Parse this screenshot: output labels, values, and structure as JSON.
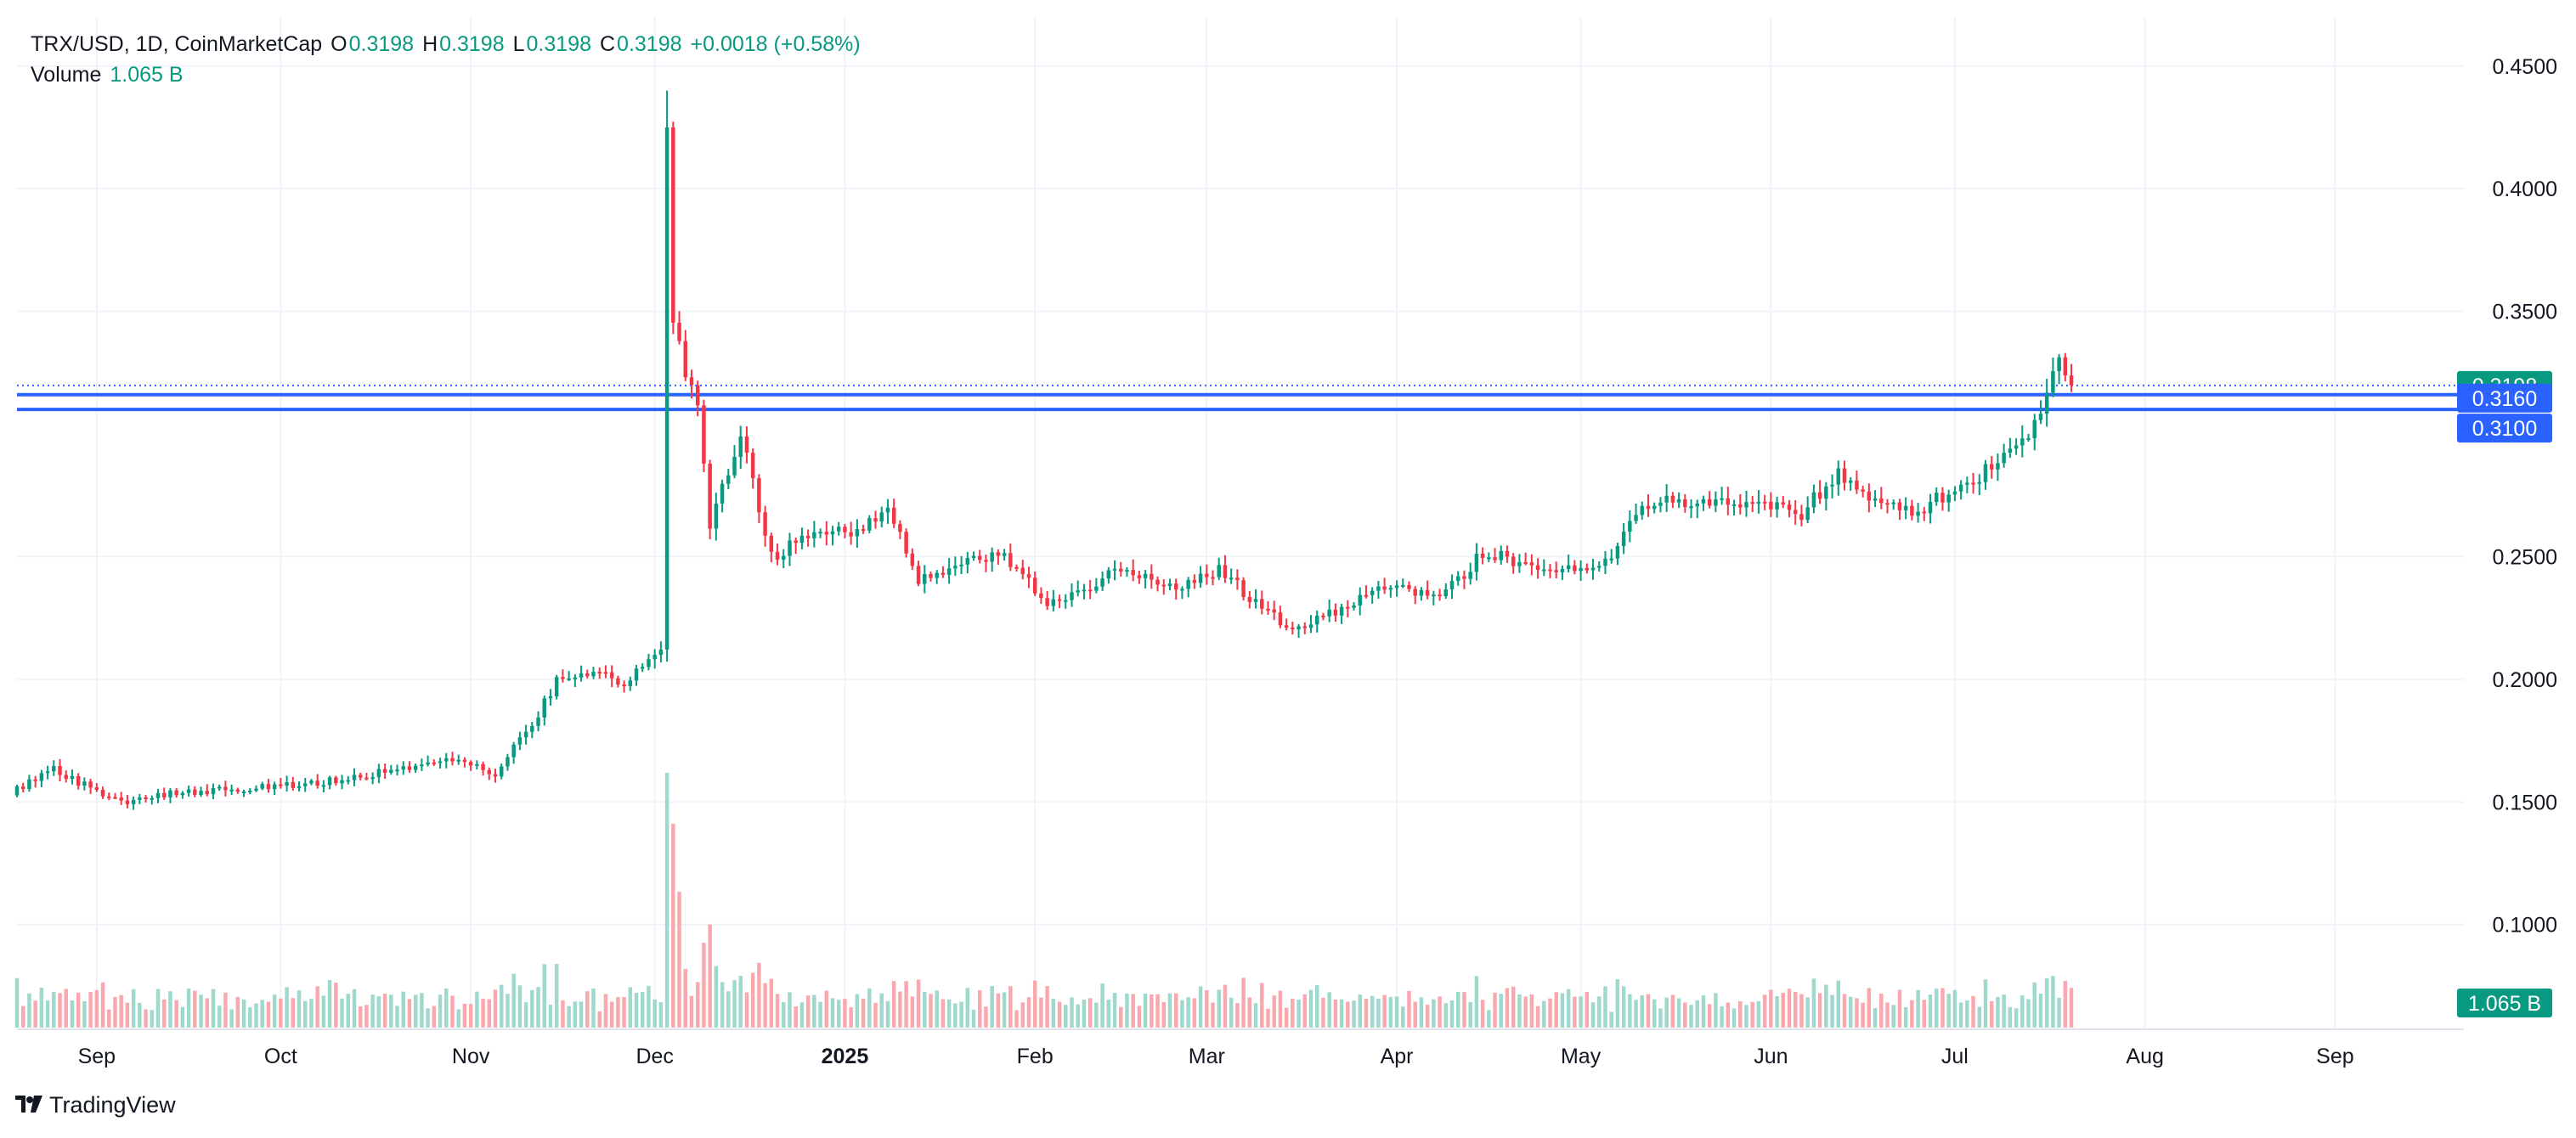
{
  "legend": {
    "symbol": "TRX/USD, 1D, CoinMarketCap",
    "o_label": "O",
    "o_value": "0.3198",
    "h_label": "H",
    "h_value": "0.3198",
    "l_label": "L",
    "l_value": "0.3198",
    "c_label": "C",
    "c_value": "0.3198",
    "change": "+0.0018 (+0.58%)",
    "volume_label": "Volume",
    "volume_value": "1.065 B"
  },
  "brand": {
    "name": "TradingView",
    "logo_icon": "tradingview-logo-icon"
  },
  "colors": {
    "up": "#089981",
    "down": "#F23645",
    "up_volume": "#9fd8cc",
    "down_volume": "#f9a8ae",
    "grid": "#f0f3fa",
    "axis_text": "#131722",
    "price_line": "#2962FF",
    "current_price_bg": "#089981"
  },
  "chart_data": {
    "type": "candlestick",
    "symbol": "TRX/USD",
    "interval": "1D",
    "source": "CoinMarketCap",
    "x_axis": {
      "ticks": [
        "Sep",
        "Oct",
        "Nov",
        "Dec",
        "2025",
        "Feb",
        "Mar",
        "Apr",
        "May",
        "Jun",
        "Jul",
        "Aug",
        "Sep"
      ],
      "tick_dates": [
        "2024-09-01",
        "2024-10-01",
        "2024-11-01",
        "2024-12-01",
        "2025-01-01",
        "2025-02-01",
        "2025-03-01",
        "2025-04-01",
        "2025-05-01",
        "2025-06-01",
        "2025-07-01",
        "2025-08-01",
        "2025-09-01"
      ],
      "range": [
        "2024-08-19",
        "2025-09-22"
      ]
    },
    "y_axis": {
      "ticks": [
        "0.4500",
        "0.4000",
        "0.3500",
        "0.2500",
        "0.2000",
        "0.1500",
        "0.1000"
      ],
      "range": [
        0.058,
        0.47
      ],
      "position": "right",
      "grid": true
    },
    "close_anchors": [
      [
        "2024-08-19",
        0.155
      ],
      [
        "2024-08-25",
        0.163
      ],
      [
        "2024-09-05",
        0.15
      ],
      [
        "2024-09-15",
        0.154
      ],
      [
        "2024-10-01",
        0.156
      ],
      [
        "2024-10-15",
        0.161
      ],
      [
        "2024-10-30",
        0.167
      ],
      [
        "2024-11-05",
        0.162
      ],
      [
        "2024-11-10",
        0.178
      ],
      [
        "2024-11-15",
        0.199
      ],
      [
        "2024-11-22",
        0.205
      ],
      [
        "2024-11-26",
        0.197
      ],
      [
        "2024-11-30",
        0.21
      ],
      [
        "2024-12-02",
        0.21
      ],
      [
        "2024-12-03",
        0.425
      ],
      [
        "2024-12-04",
        0.345
      ],
      [
        "2024-12-06",
        0.325
      ],
      [
        "2024-12-08",
        0.31
      ],
      [
        "2024-12-10",
        0.263
      ],
      [
        "2024-12-15",
        0.3
      ],
      [
        "2024-12-20",
        0.25
      ],
      [
        "2024-12-28",
        0.262
      ],
      [
        "2025-01-03",
        0.26
      ],
      [
        "2025-01-08",
        0.27
      ],
      [
        "2025-01-13",
        0.24
      ],
      [
        "2025-01-20",
        0.248
      ],
      [
        "2025-01-27",
        0.25
      ],
      [
        "2025-02-03",
        0.232
      ],
      [
        "2025-02-08",
        0.236
      ],
      [
        "2025-02-15",
        0.245
      ],
      [
        "2025-02-25",
        0.238
      ],
      [
        "2025-03-03",
        0.244
      ],
      [
        "2025-03-11",
        0.228
      ],
      [
        "2025-03-15",
        0.218
      ],
      [
        "2025-03-22",
        0.228
      ],
      [
        "2025-03-31",
        0.238
      ],
      [
        "2025-04-08",
        0.232
      ],
      [
        "2025-04-15",
        0.252
      ],
      [
        "2025-04-25",
        0.245
      ],
      [
        "2025-05-05",
        0.248
      ],
      [
        "2025-05-12",
        0.272
      ],
      [
        "2025-05-20",
        0.272
      ],
      [
        "2025-06-01",
        0.272
      ],
      [
        "2025-06-05",
        0.265
      ],
      [
        "2025-06-12",
        0.285
      ],
      [
        "2025-06-18",
        0.272
      ],
      [
        "2025-06-24",
        0.268
      ],
      [
        "2025-07-01",
        0.277
      ],
      [
        "2025-07-08",
        0.288
      ],
      [
        "2025-07-14",
        0.303
      ],
      [
        "2025-07-16",
        0.32
      ],
      [
        "2025-07-18",
        0.333
      ],
      [
        "2025-07-20",
        0.3198
      ]
    ],
    "notable_points": {
      "peak_high": {
        "date": "2024-12-03",
        "value": 0.44
      },
      "last_close": {
        "date": "2025-07-20",
        "value": 0.3198
      }
    },
    "horizontal_lines": [
      {
        "value": 0.316,
        "label": "0.3160",
        "color": "#2962FF"
      },
      {
        "value": 0.31,
        "label": "0.3100",
        "color": "#2962FF"
      }
    ],
    "current_price": {
      "value": 0.3198,
      "label": "0.3198"
    },
    "volume": {
      "last_label": "1.065 B",
      "peak_date": "2024-12-03"
    }
  }
}
